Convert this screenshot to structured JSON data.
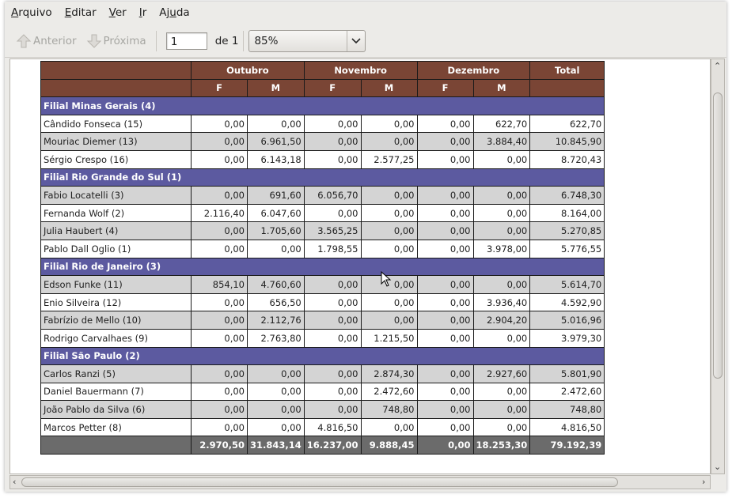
{
  "menu": [
    {
      "prefix": "",
      "mnemonic": "A",
      "rest": "rquivo"
    },
    {
      "prefix": "",
      "mnemonic": "E",
      "rest": "ditar"
    },
    {
      "prefix": "",
      "mnemonic": "V",
      "rest": "er"
    },
    {
      "prefix": "",
      "mnemonic": "I",
      "rest": "r"
    },
    {
      "prefix": "Aj",
      "mnemonic": "u",
      "rest": "da"
    }
  ],
  "toolbar": {
    "prev_label": "Anterior",
    "next_label": "Próxima",
    "page_value": "1",
    "of_label": "de 1",
    "zoom_value": "85%"
  },
  "report": {
    "months": [
      "Outubro",
      "Novembro",
      "Dezembro"
    ],
    "total_label": "Total",
    "sub_headers": [
      "F",
      "M",
      "F",
      "M",
      "F",
      "M"
    ],
    "groups": [
      {
        "title": "Filial Minas Gerais (4)",
        "rows": [
          {
            "name": "Cândido Fonseca (15)",
            "values": [
              "0,00",
              "0,00",
              "0,00",
              "0,00",
              "0,00",
              "622,70",
              "622,70"
            ]
          },
          {
            "name": "Mouriac Diemer (13)",
            "values": [
              "0,00",
              "6.961,50",
              "0,00",
              "0,00",
              "0,00",
              "3.884,40",
              "10.845,90"
            ]
          },
          {
            "name": "Sérgio Crespo (16)",
            "values": [
              "0,00",
              "6.143,18",
              "0,00",
              "2.577,25",
              "0,00",
              "0,00",
              "8.720,43"
            ]
          }
        ]
      },
      {
        "title": "Filial Rio Grande do Sul (1)",
        "rows": [
          {
            "name": "Fabio Locatelli (3)",
            "values": [
              "0,00",
              "691,60",
              "6.056,70",
              "0,00",
              "0,00",
              "0,00",
              "6.748,30"
            ]
          },
          {
            "name": "Fernanda Wolf (2)",
            "values": [
              "2.116,40",
              "6.047,60",
              "0,00",
              "0,00",
              "0,00",
              "0,00",
              "8.164,00"
            ]
          },
          {
            "name": "Julia Haubert (4)",
            "values": [
              "0,00",
              "1.705,60",
              "3.565,25",
              "0,00",
              "0,00",
              "0,00",
              "5.270,85"
            ]
          },
          {
            "name": "Pablo Dall Oglio (1)",
            "values": [
              "0,00",
              "0,00",
              "1.798,55",
              "0,00",
              "0,00",
              "3.978,00",
              "5.776,55"
            ]
          }
        ]
      },
      {
        "title": "Filial Rio de Janeiro (3)",
        "rows": [
          {
            "name": "Edson Funke (11)",
            "values": [
              "854,10",
              "4.760,60",
              "0,00",
              "0,00",
              "0,00",
              "0,00",
              "5.614,70"
            ]
          },
          {
            "name": "Enio Silveira (12)",
            "values": [
              "0,00",
              "656,50",
              "0,00",
              "0,00",
              "0,00",
              "3.936,40",
              "4.592,90"
            ]
          },
          {
            "name": "Fabrízio de Mello (10)",
            "values": [
              "0,00",
              "2.112,76",
              "0,00",
              "0,00",
              "0,00",
              "2.904,20",
              "5.016,96"
            ]
          },
          {
            "name": "Rodrigo Carvalhaes (9)",
            "values": [
              "0,00",
              "2.763,80",
              "0,00",
              "1.215,50",
              "0,00",
              "0,00",
              "3.979,30"
            ]
          }
        ]
      },
      {
        "title": "Filial São Paulo (2)",
        "rows": [
          {
            "name": "Carlos Ranzi (5)",
            "values": [
              "0,00",
              "0,00",
              "0,00",
              "2.874,30",
              "0,00",
              "2.927,60",
              "5.801,90"
            ]
          },
          {
            "name": "Daniel Bauermann (7)",
            "values": [
              "0,00",
              "0,00",
              "0,00",
              "2.472,60",
              "0,00",
              "0,00",
              "2.472,60"
            ]
          },
          {
            "name": "João Pablo da Silva (6)",
            "values": [
              "0,00",
              "0,00",
              "0,00",
              "748,80",
              "0,00",
              "0,00",
              "748,80"
            ]
          },
          {
            "name": "Marcos Petter (8)",
            "values": [
              "0,00",
              "0,00",
              "4.816,50",
              "0,00",
              "0,00",
              "0,00",
              "4.816,50"
            ]
          }
        ]
      }
    ],
    "totals": [
      "2.970,50",
      "31.843,14",
      "16.237,00",
      "9.888,45",
      "0,00",
      "18.253,30",
      "79.192,39"
    ]
  },
  "colors": {
    "header_bg": "#7a4535",
    "group_bg": "#5c5aa0",
    "total_bg": "#6b6b6b",
    "stripe_bg": "#d4d4d4"
  }
}
